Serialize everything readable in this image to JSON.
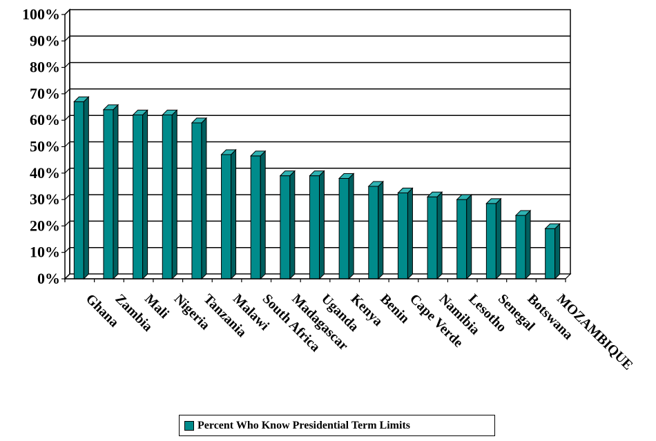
{
  "chart_data": {
    "type": "bar",
    "categories": [
      "Ghana",
      "Zambia",
      "Mali",
      "Nigeria",
      "Tanzania",
      "Malawi",
      "South Africa",
      "Madagascar",
      "Uganda",
      "Kenya",
      "Benin",
      "Cape Verde",
      "Namibia",
      "Lesotho",
      "Senegal",
      "Botswana",
      "MOZAMBIQUE"
    ],
    "series": [
      {
        "name": "Percent Who Know Presidential Term Limits",
        "values": [
          67,
          64,
          62,
          62,
          59,
          47,
          46.5,
          39,
          39,
          38,
          35,
          32.5,
          31,
          30,
          28.5,
          24,
          19
        ]
      }
    ],
    "yticks": [
      "0%",
      "10%",
      "20%",
      "30%",
      "40%",
      "50%",
      "60%",
      "70%",
      "80%",
      "90%",
      "100%"
    ],
    "ylim": [
      0,
      100
    ],
    "grid": true,
    "legend_position": "bottom",
    "colors": {
      "bar_front": "#008b8b",
      "bar_side": "#005f5f",
      "bar_top": "#2fb3b3"
    }
  }
}
